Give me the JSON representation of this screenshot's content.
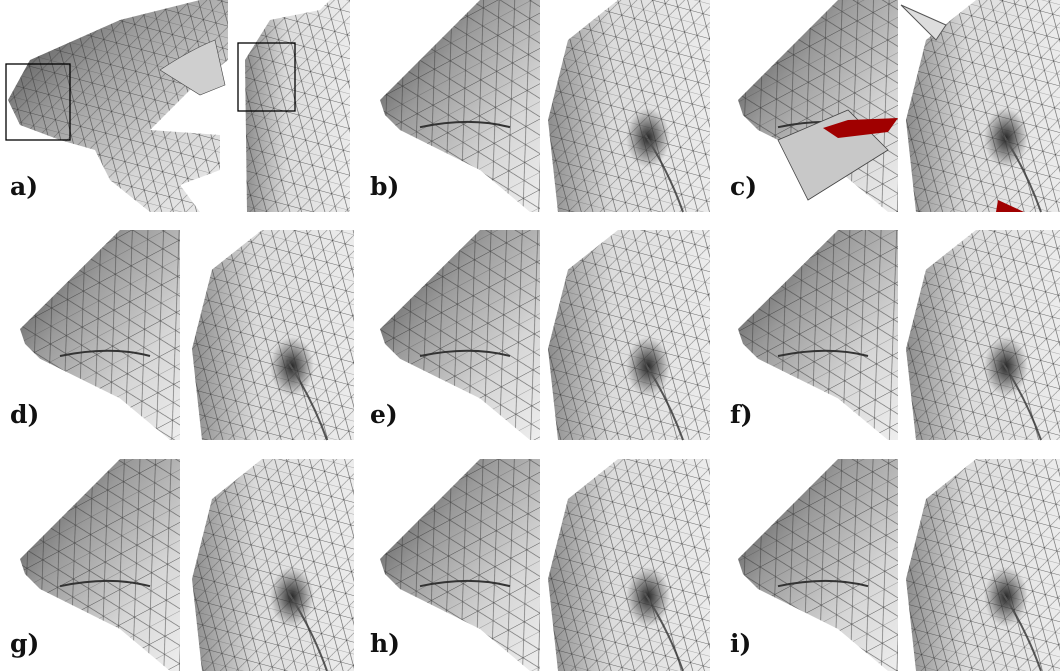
{
  "panels": [
    {
      "label": "a)"
    },
    {
      "label": "b)"
    },
    {
      "label": "c)"
    },
    {
      "label": "d)"
    },
    {
      "label": "e)"
    },
    {
      "label": "f)"
    },
    {
      "label": "g)"
    },
    {
      "label": "h)"
    },
    {
      "label": "i)"
    }
  ]
}
